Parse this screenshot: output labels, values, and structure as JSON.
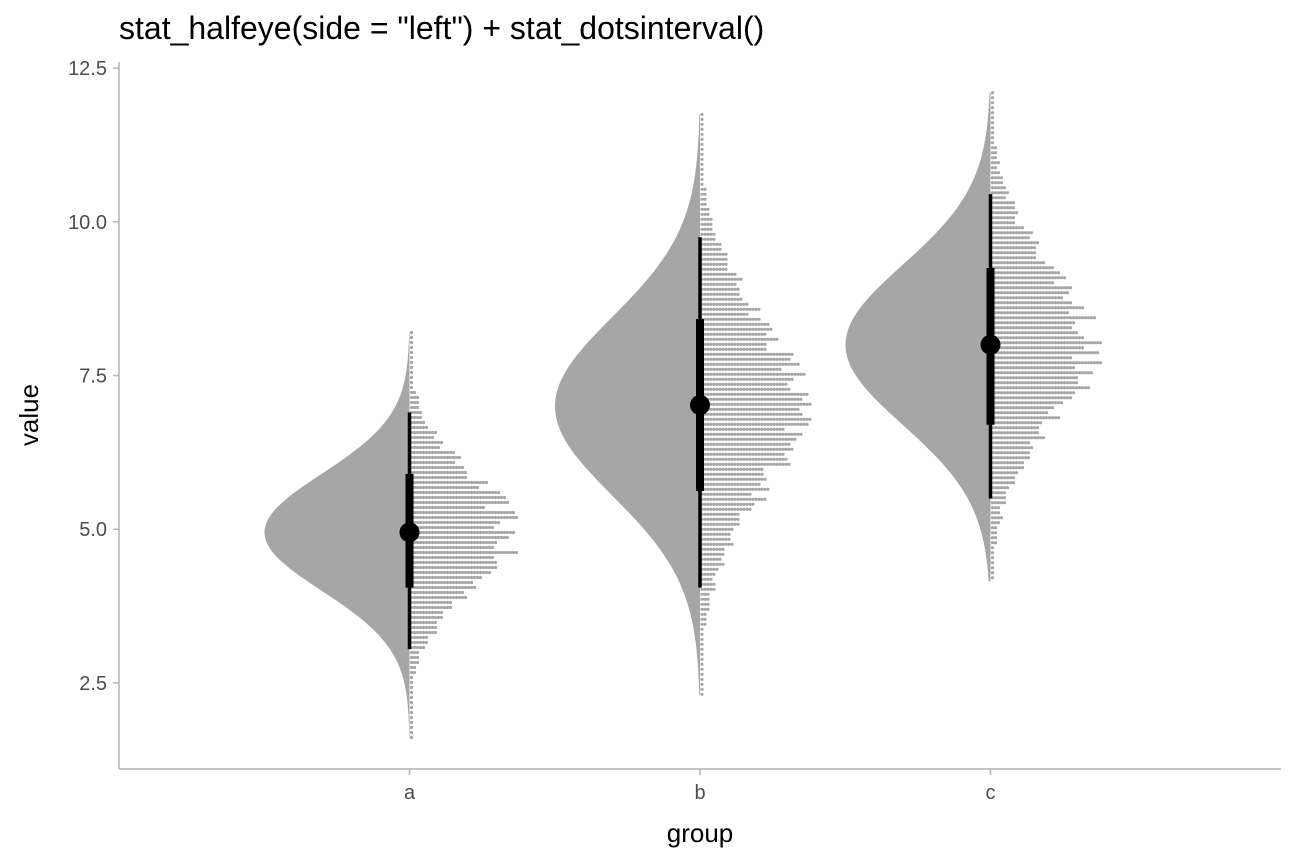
{
  "chart_data": {
    "type": "half-eye + dots interval",
    "title": "stat_halfeye(side = \"left\") + stat_dotsinterval()",
    "xlabel": "group",
    "ylabel": "value",
    "categories": [
      "a",
      "b",
      "c"
    ],
    "y_ticks": [
      "2.5",
      "5.0",
      "7.5",
      "10.0",
      "12.5"
    ],
    "ylim": [
      1.1,
      12.6
    ],
    "grid": false,
    "legend": "none",
    "colors": {
      "slab": "#a6a6a6",
      "dots": "#a6a6a6",
      "interval": "#000000",
      "axis": "#b3b3b3",
      "tick_text": "#4d4d4d"
    },
    "series": [
      {
        "group": "a",
        "distribution": {
          "mean": 4.95,
          "sd": 0.95,
          "min": 1.6,
          "max": 8.2
        },
        "point": 4.95,
        "interval_66": [
          4.05,
          5.9
        ],
        "interval_95": [
          3.05,
          6.9
        ]
      },
      {
        "group": "b",
        "distribution": {
          "mean": 7.0,
          "sd": 1.45,
          "min": 2.3,
          "max": 11.75
        },
        "point": 7.02,
        "interval_66": [
          5.62,
          8.42
        ],
        "interval_95": [
          4.05,
          9.75
        ]
      },
      {
        "group": "c",
        "distribution": {
          "mean": 8.0,
          "sd": 1.3,
          "min": 4.15,
          "max": 12.1
        },
        "point": 8.0,
        "interval_66": [
          6.7,
          9.25
        ],
        "interval_95": [
          5.5,
          10.45
        ]
      }
    ]
  }
}
